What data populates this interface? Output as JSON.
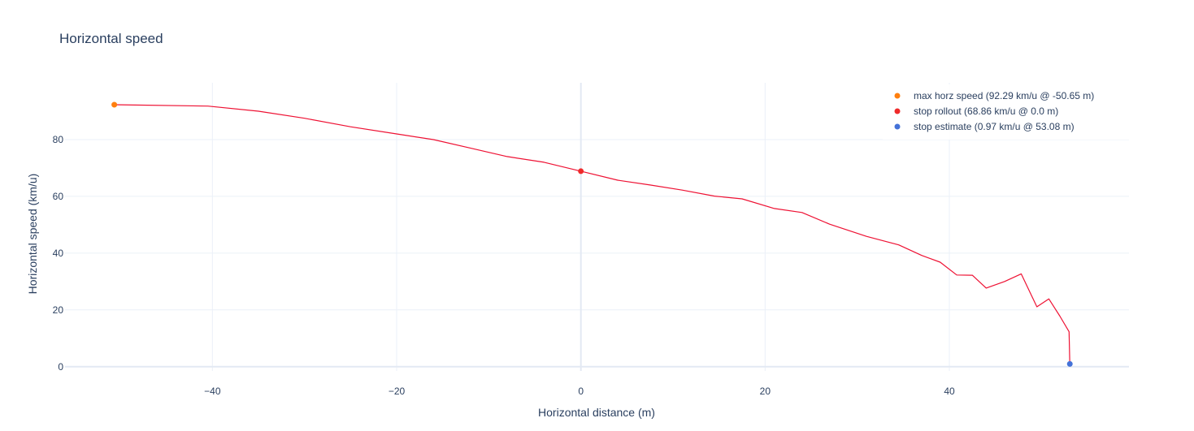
{
  "chart_data": {
    "type": "line",
    "title": "Horizontal speed",
    "xlabel": "Horizontal distance (m)",
    "ylabel": "Horizontal speed (km/u)",
    "xlim": [
      -56,
      59.5
    ],
    "ylim": [
      -1.5,
      100
    ],
    "xticks": [
      -40,
      -20,
      0,
      20,
      40
    ],
    "yticks": [
      0,
      20,
      40,
      60,
      80
    ],
    "grid": true,
    "legend_position": "top-right",
    "colors": {
      "line": "#ee1133",
      "max": "#ff7f0e",
      "rollout": "#ef2a2a",
      "estimate": "#4472d8",
      "grid": "#ebf0f8",
      "zeroline": "#e3e9f3",
      "text": "#2a3f5f"
    },
    "series": [
      {
        "type": "line",
        "x": [
          -50.65,
          -40.5,
          -35,
          -30,
          -25,
          -20,
          -16,
          -12,
          -8,
          -4,
          0,
          4,
          7.5,
          11,
          14.5,
          17.5,
          21,
          24,
          27,
          31,
          34.5,
          37,
          39,
          40.8,
          42.5,
          44,
          46,
          47.8,
          49.5,
          50.8,
          52,
          53,
          53.08
        ],
        "y": [
          92.29,
          91.8,
          90,
          87.5,
          84.5,
          82,
          80,
          77,
          74,
          72,
          68.86,
          65.7,
          64,
          62.2,
          60.1,
          59.1,
          55.7,
          54.3,
          50.2,
          45.9,
          42.9,
          39.2,
          36.8,
          32.3,
          32.2,
          27.7,
          30,
          32.7,
          21.1,
          23.9,
          17.8,
          12.3,
          0.97
        ]
      },
      {
        "type": "marker",
        "name": "max horz speed (92.29 km/u @ -50.65 m)",
        "x": [
          -50.65
        ],
        "y": [
          92.29
        ]
      },
      {
        "type": "marker",
        "name": "stop rollout (68.86 km/u @ 0.0 m)",
        "x": [
          0.0
        ],
        "y": [
          68.86
        ]
      },
      {
        "type": "marker",
        "name": "stop estimate (0.97 km/u @ 53.08 m)",
        "x": [
          53.08
        ],
        "y": [
          0.97
        ]
      }
    ]
  }
}
